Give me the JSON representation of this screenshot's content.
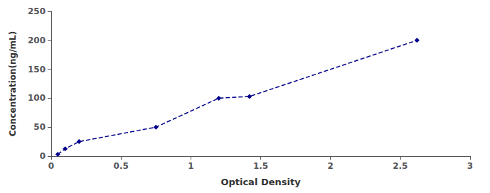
{
  "chart_data": {
    "type": "line",
    "x": [
      0.047,
      0.1,
      0.2,
      0.75,
      1.2,
      1.42,
      2.62
    ],
    "values": [
      3.125,
      12.5,
      25,
      50,
      100,
      103,
      200
    ],
    "color": "#00008B",
    "marker": "diamond",
    "line_style": "dashed",
    "xlabel": "Optical Density",
    "ylabel": "Concentration(ng/mL)",
    "xlim": [
      0,
      3
    ],
    "ylim": [
      0,
      250
    ],
    "xticks": [
      0,
      0.5,
      1,
      1.5,
      2,
      2.5,
      3
    ],
    "yticks": [
      0,
      50,
      100,
      150,
      200,
      250
    ],
    "grid": false
  }
}
